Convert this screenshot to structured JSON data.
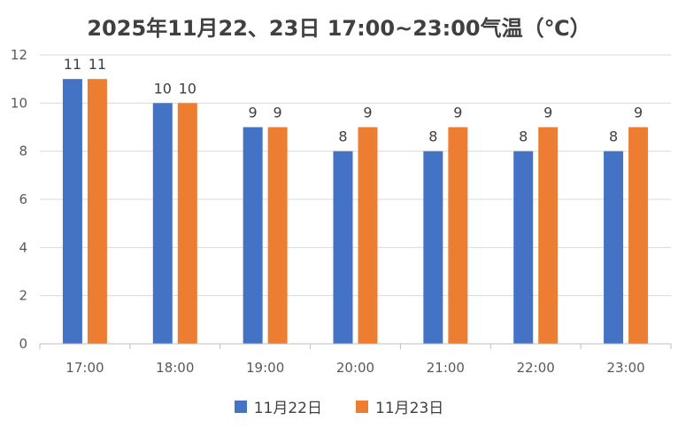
{
  "chart_data": {
    "type": "bar",
    "title": "2025年11月22、23日  17:00~23:00气温（℃）",
    "xlabel": "",
    "ylabel": "",
    "categories": [
      "17:00",
      "18:00",
      "19:00",
      "20:00",
      "21:00",
      "22:00",
      "23:00"
    ],
    "series": [
      {
        "name": "11月22日",
        "values": [
          11,
          10,
          9,
          8,
          8,
          8,
          8
        ],
        "color": "#4472C4"
      },
      {
        "name": "11月23日",
        "values": [
          11,
          10,
          9,
          9,
          9,
          9,
          9
        ],
        "color": "#ED7D31"
      }
    ],
    "ylim": [
      0,
      12
    ],
    "yticks": [
      0,
      2,
      4,
      6,
      8,
      10,
      12
    ],
    "grid": true,
    "legend": "bottom",
    "data_labels": true
  }
}
